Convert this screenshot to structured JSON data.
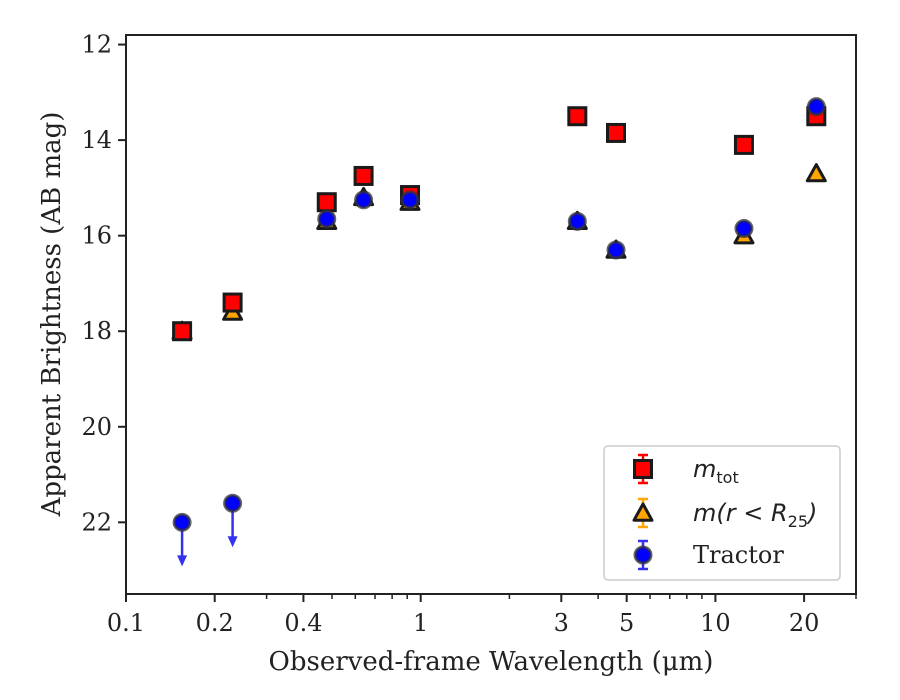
{
  "chart_data": {
    "type": "scatter",
    "title": "",
    "xlabel": "Observed-frame Wavelength (μm)",
    "ylabel": "Apparent Brightness (AB mag)",
    "xscale": "log",
    "xlim": [
      0.1,
      30
    ],
    "ylim": [
      23.5,
      11.8
    ],
    "y_inverted": true,
    "x_ticks": [
      0.1,
      0.2,
      0.4,
      1,
      3,
      5,
      10,
      20
    ],
    "x_tick_labels": [
      "0.1",
      "0.2",
      "0.4",
      "1",
      "3",
      "5",
      "10",
      "20"
    ],
    "y_ticks": [
      12,
      14,
      16,
      18,
      20,
      22
    ],
    "y_tick_labels": [
      "12",
      "14",
      "16",
      "18",
      "20",
      "22"
    ],
    "grid": false,
    "legend_position": "lower-right",
    "series": [
      {
        "key": "mtot",
        "name": "m_tot",
        "legend_main": "m",
        "legend_sub": "tot",
        "marker": "square",
        "color": "#ff0000",
        "error_color": "#ff0000",
        "points": [
          {
            "x": 0.155,
            "y": 18.0
          },
          {
            "x": 0.23,
            "y": 17.4
          },
          {
            "x": 0.48,
            "y": 15.3
          },
          {
            "x": 0.64,
            "y": 14.75
          },
          {
            "x": 0.92,
            "y": 15.15
          },
          {
            "x": 3.4,
            "y": 13.5
          },
          {
            "x": 4.6,
            "y": 13.85
          },
          {
            "x": 12.5,
            "y": 14.1
          },
          {
            "x": 22.0,
            "y": 13.5
          }
        ]
      },
      {
        "key": "mr25",
        "name": "m(r < R_25)",
        "legend_main": "m(r < R",
        "legend_sub": "25",
        "legend_end": ")",
        "marker": "triangle",
        "color": "#ffa500",
        "error_color": "#ffa500",
        "points": [
          {
            "x": 0.155,
            "y": 18.0
          },
          {
            "x": 0.23,
            "y": 17.6
          },
          {
            "x": 0.48,
            "y": 15.7
          },
          {
            "x": 0.64,
            "y": 15.2
          },
          {
            "x": 0.92,
            "y": 15.3
          },
          {
            "x": 3.4,
            "y": 15.7
          },
          {
            "x": 4.6,
            "y": 16.3
          },
          {
            "x": 12.5,
            "y": 16.0
          },
          {
            "x": 22.0,
            "y": 14.7
          }
        ]
      },
      {
        "key": "tractor",
        "name": "Tractor",
        "marker": "circle",
        "color": "#0000ff",
        "error_color": "#3333ee",
        "points": [
          {
            "x": 0.155,
            "y": 22.0,
            "upper_limit": true
          },
          {
            "x": 0.23,
            "y": 21.6,
            "upper_limit": true
          },
          {
            "x": 0.48,
            "y": 15.65
          },
          {
            "x": 0.64,
            "y": 15.25
          },
          {
            "x": 0.92,
            "y": 15.25
          },
          {
            "x": 3.4,
            "y": 15.7
          },
          {
            "x": 4.6,
            "y": 16.3
          },
          {
            "x": 12.5,
            "y": 15.85
          },
          {
            "x": 22.0,
            "y": 13.3
          }
        ]
      }
    ]
  }
}
